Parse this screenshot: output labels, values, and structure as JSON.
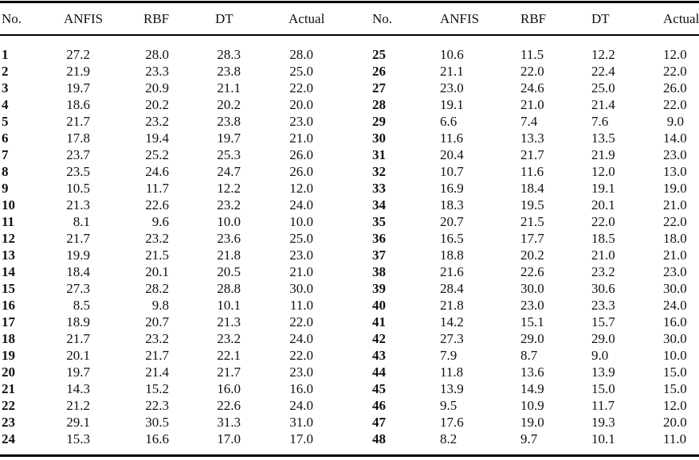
{
  "table": {
    "type": "table",
    "headers": [
      "No.",
      "ANFIS",
      "RBF",
      "DT",
      "Actual",
      "No.",
      "ANFIS",
      "RBF",
      "DT",
      "Actual"
    ],
    "rows": [
      {
        "left": {
          "no": "1",
          "anfis": "27.2",
          "rbf": "28.0",
          "dt": "28.3",
          "actual": "28.0"
        },
        "right": {
          "no": "25",
          "anfis": "10.6",
          "rbf": "11.5",
          "dt": "12.2",
          "actual": "12.0"
        }
      },
      {
        "left": {
          "no": "2",
          "anfis": "21.9",
          "rbf": "23.3",
          "dt": "23.8",
          "actual": "25.0"
        },
        "right": {
          "no": "26",
          "anfis": "21.1",
          "rbf": "22.0",
          "dt": "22.4",
          "actual": "22.0"
        }
      },
      {
        "left": {
          "no": "3",
          "anfis": "19.7",
          "rbf": "20.9",
          "dt": "21.1",
          "actual": "22.0"
        },
        "right": {
          "no": "27",
          "anfis": "23.0",
          "rbf": "24.6",
          "dt": "25.0",
          "actual": "26.0"
        }
      },
      {
        "left": {
          "no": "4",
          "anfis": "18.6",
          "rbf": "20.2",
          "dt": "20.2",
          "actual": "20.0"
        },
        "right": {
          "no": "28",
          "anfis": "19.1",
          "rbf": "21.0",
          "dt": "21.4",
          "actual": "22.0"
        }
      },
      {
        "left": {
          "no": "5",
          "anfis": "21.7",
          "rbf": "23.2",
          "dt": "23.8",
          "actual": "23.0"
        },
        "right": {
          "no": "29",
          "anfis": "6.6",
          "rbf": "7.4",
          "dt": "7.6",
          "actual": "9.0"
        }
      },
      {
        "left": {
          "no": "6",
          "anfis": "17.8",
          "rbf": "19.4",
          "dt": "19.7",
          "actual": "21.0"
        },
        "right": {
          "no": "30",
          "anfis": "11.6",
          "rbf": "13.3",
          "dt": "13.5",
          "actual": "14.0"
        }
      },
      {
        "left": {
          "no": "7",
          "anfis": "23.7",
          "rbf": "25.2",
          "dt": "25.3",
          "actual": "26.0"
        },
        "right": {
          "no": "31",
          "anfis": "20.4",
          "rbf": "21.7",
          "dt": "21.9",
          "actual": "23.0"
        }
      },
      {
        "left": {
          "no": "8",
          "anfis": "23.5",
          "rbf": "24.6",
          "dt": "24.7",
          "actual": "26.0"
        },
        "right": {
          "no": "32",
          "anfis": "10.7",
          "rbf": "11.6",
          "dt": "12.0",
          "actual": "13.0"
        }
      },
      {
        "left": {
          "no": "9",
          "anfis": "10.5",
          "rbf": "11.7",
          "dt": "12.2",
          "actual": "12.0"
        },
        "right": {
          "no": "33",
          "anfis": "16.9",
          "rbf": "18.4",
          "dt": "19.1",
          "actual": "19.0"
        }
      },
      {
        "left": {
          "no": "10",
          "anfis": "21.3",
          "rbf": "22.6",
          "dt": "23.2",
          "actual": "24.0"
        },
        "right": {
          "no": "34",
          "anfis": "18.3",
          "rbf": "19.5",
          "dt": "20.1",
          "actual": "21.0"
        }
      },
      {
        "left": {
          "no": "11",
          "anfis": "8.1",
          "rbf": "9.6",
          "dt": "10.0",
          "actual": "10.0"
        },
        "right": {
          "no": "35",
          "anfis": "20.7",
          "rbf": "21.5",
          "dt": "22.0",
          "actual": "22.0"
        }
      },
      {
        "left": {
          "no": "12",
          "anfis": "21.7",
          "rbf": "23.2",
          "dt": "23.6",
          "actual": "25.0"
        },
        "right": {
          "no": "36",
          "anfis": "16.5",
          "rbf": "17.7",
          "dt": "18.5",
          "actual": "18.0"
        }
      },
      {
        "left": {
          "no": "13",
          "anfis": "19.9",
          "rbf": "21.5",
          "dt": "21.8",
          "actual": "23.0"
        },
        "right": {
          "no": "37",
          "anfis": "18.8",
          "rbf": "20.2",
          "dt": "21.0",
          "actual": "21.0"
        }
      },
      {
        "left": {
          "no": "14",
          "anfis": "18.4",
          "rbf": "20.1",
          "dt": "20.5",
          "actual": "21.0"
        },
        "right": {
          "no": "38",
          "anfis": "21.6",
          "rbf": "22.6",
          "dt": "23.2",
          "actual": "23.0"
        }
      },
      {
        "left": {
          "no": "15",
          "anfis": "27.3",
          "rbf": "28.2",
          "dt": "28.8",
          "actual": "30.0"
        },
        "right": {
          "no": "39",
          "anfis": "28.4",
          "rbf": "30.0",
          "dt": "30.6",
          "actual": "30.0"
        }
      },
      {
        "left": {
          "no": "16",
          "anfis": "8.5",
          "rbf": "9.8",
          "dt": "10.1",
          "actual": "11.0"
        },
        "right": {
          "no": "40",
          "anfis": "21.8",
          "rbf": "23.0",
          "dt": "23.3",
          "actual": "24.0"
        }
      },
      {
        "left": {
          "no": "17",
          "anfis": "18.9",
          "rbf": "20.7",
          "dt": "21.3",
          "actual": "22.0"
        },
        "right": {
          "no": "41",
          "anfis": "14.2",
          "rbf": "15.1",
          "dt": "15.7",
          "actual": "16.0"
        }
      },
      {
        "left": {
          "no": "18",
          "anfis": "21.7",
          "rbf": "23.2",
          "dt": "23.2",
          "actual": "24.0"
        },
        "right": {
          "no": "42",
          "anfis": "27.3",
          "rbf": "29.0",
          "dt": "29.0",
          "actual": "30.0"
        }
      },
      {
        "left": {
          "no": "19",
          "anfis": "20.1",
          "rbf": "21.7",
          "dt": "22.1",
          "actual": "22.0"
        },
        "right": {
          "no": "43",
          "anfis": "7.9",
          "rbf": "8.7",
          "dt": "9.0",
          "actual": "10.0"
        }
      },
      {
        "left": {
          "no": "20",
          "anfis": "19.7",
          "rbf": "21.4",
          "dt": "21.7",
          "actual": "23.0"
        },
        "right": {
          "no": "44",
          "anfis": "11.8",
          "rbf": "13.6",
          "dt": "13.9",
          "actual": "15.0"
        }
      },
      {
        "left": {
          "no": "21",
          "anfis": "14.3",
          "rbf": "15.2",
          "dt": "16.0",
          "actual": "16.0"
        },
        "right": {
          "no": "45",
          "anfis": "13.9",
          "rbf": "14.9",
          "dt": "15.0",
          "actual": "15.0"
        }
      },
      {
        "left": {
          "no": "22",
          "anfis": "21.2",
          "rbf": "22.3",
          "dt": "22.6",
          "actual": "24.0"
        },
        "right": {
          "no": "46",
          "anfis": "9.5",
          "rbf": "10.9",
          "dt": "11.7",
          "actual": "12.0"
        }
      },
      {
        "left": {
          "no": "23",
          "anfis": "29.1",
          "rbf": "30.5",
          "dt": "31.3",
          "actual": "31.0"
        },
        "right": {
          "no": "47",
          "anfis": "17.6",
          "rbf": "19.0",
          "dt": "19.3",
          "actual": "20.0"
        }
      },
      {
        "left": {
          "no": "24",
          "anfis": "15.3",
          "rbf": "16.6",
          "dt": "17.0",
          "actual": "17.0"
        },
        "right": {
          "no": "48",
          "anfis": "8.2",
          "rbf": "9.7",
          "dt": "10.1",
          "actual": "11.0"
        }
      }
    ]
  }
}
